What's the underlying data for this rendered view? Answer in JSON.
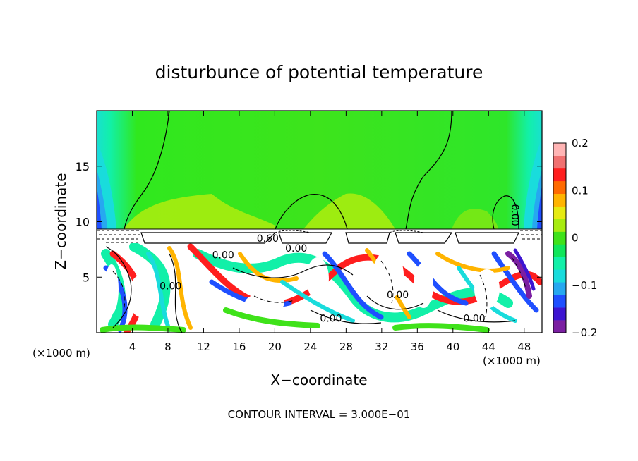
{
  "chart_data": {
    "type": "heatmap",
    "title": "disturbunce of potential temperature",
    "xlabel": "X−coordinate",
    "ylabel": "Z−coordinate",
    "x_unit": "(×1000 m)",
    "x_unit_right": "(×1000 m)",
    "x_ticks": [
      4,
      8,
      12,
      16,
      20,
      24,
      28,
      32,
      36,
      40,
      44,
      48
    ],
    "y_ticks": [
      5,
      10,
      15
    ],
    "xlim": [
      0,
      50
    ],
    "ylim": [
      0,
      20
    ],
    "colorbar": {
      "ticks": [
        "0.2",
        "0.1",
        "0",
        "−0.1",
        "−0.2"
      ],
      "tick_values": [
        0.2,
        0.1,
        0,
        -0.1,
        -0.2
      ],
      "range": [
        -0.2,
        0.2
      ],
      "colors": [
        "#7b1fa2",
        "#3d14d1",
        "#1f4fff",
        "#26a8f0",
        "#19dcdc",
        "#12f0a8",
        "#10e65a",
        "#3fe21a",
        "#a8ec10",
        "#e6ea12",
        "#ffb400",
        "#ff6a00",
        "#ff1e1e",
        "#f07070",
        "#ffb4b4"
      ]
    },
    "contour_labels": [
      {
        "text": "0.60",
        "x": 19.2,
        "z": 8.2
      },
      {
        "text": "0.00",
        "x": 22.4,
        "z": 7.3
      },
      {
        "text": "0.00",
        "x": 14.2,
        "z": 6.7
      },
      {
        "text": "0.00",
        "x": 8.3,
        "z": 3.9
      },
      {
        "text": "0.00",
        "x": 33.8,
        "z": 3.1
      },
      {
        "text": "0.00",
        "x": 26.3,
        "z": 1.0
      },
      {
        "text": "0.00",
        "x": 42.4,
        "z": 1.0
      },
      {
        "text": "0.00",
        "x": 46.6,
        "z": 10.6
      }
    ],
    "footnote": "CONTOUR INTERVAL = 3.000E−01",
    "grid": false,
    "legend": "colorbar-right"
  }
}
